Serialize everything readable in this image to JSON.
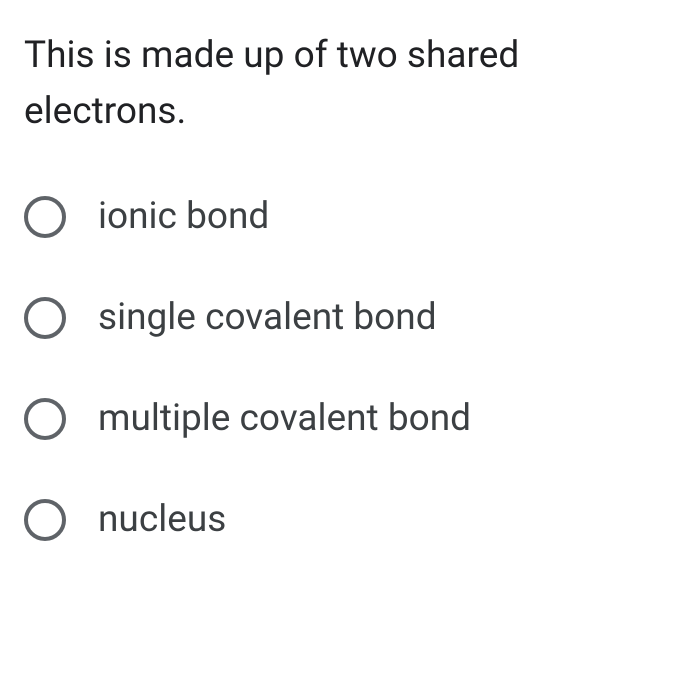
{
  "question": {
    "text": "This is made up of two shared electrons.",
    "text_color": "#202124",
    "fontsize": 37
  },
  "options": [
    {
      "label": "ionic bond",
      "selected": false
    },
    {
      "label": "single covalent bond",
      "selected": false
    },
    {
      "label": "multiple covalent bond",
      "selected": false
    },
    {
      "label": "nucleus",
      "selected": false
    }
  ],
  "styling": {
    "radio_border_color": "#5f6368",
    "radio_border_width": 4,
    "radio_size": 42,
    "option_text_color": "#3c4043",
    "option_fontsize": 37,
    "background_color": "#ffffff",
    "option_gap": 58
  }
}
